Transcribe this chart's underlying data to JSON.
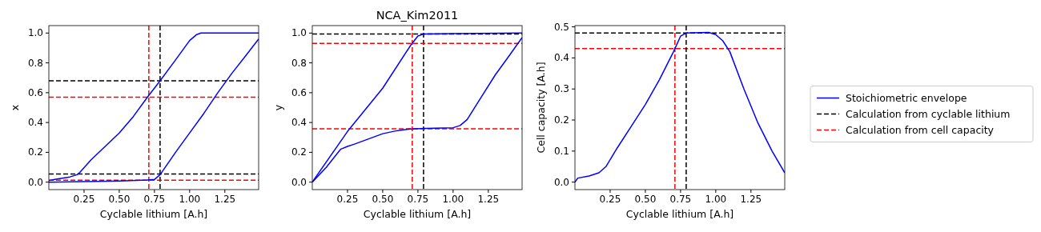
{
  "chart_data": [
    {
      "type": "line",
      "xlabel": "Cyclable lithium [A.h]",
      "ylabel": "x",
      "xlim": [
        0.0,
        1.49
      ],
      "ylim": [
        -0.05,
        1.05
      ],
      "xticks": [
        {
          "value": 0.25,
          "label": "0.25"
        },
        {
          "value": 0.5,
          "label": "0.50"
        },
        {
          "value": 0.75,
          "label": "0.75"
        },
        {
          "value": 1.0,
          "label": "1.00"
        },
        {
          "value": 1.25,
          "label": "1.25"
        }
      ],
      "yticks": [
        {
          "value": 0,
          "label": "0.0"
        },
        {
          "value": 0.2,
          "label": "0.2"
        },
        {
          "value": 0.4,
          "label": "0.4"
        },
        {
          "value": 0.6,
          "label": "0.6"
        },
        {
          "value": 0.8,
          "label": "0.8"
        },
        {
          "value": 1,
          "label": "1.0"
        }
      ],
      "series": [
        {
          "color": "#0000ff",
          "line_style": "solid",
          "x": [
            0,
            0.05,
            0.15,
            0.2,
            0.22,
            0.3,
            0.4,
            0.5,
            0.6,
            0.7,
            0.79,
            0.9,
            1.0,
            1.05,
            1.08,
            1.49
          ],
          "values": [
            0.01,
            0.02,
            0.035,
            0.05,
            0.065,
            0.15,
            0.24,
            0.33,
            0.44,
            0.57,
            0.68,
            0.82,
            0.95,
            0.99,
            1.0,
            1.0
          ]
        },
        {
          "color": "#0000ff",
          "line_style": "solid",
          "x": [
            0,
            0.25,
            0.5,
            0.7,
            0.75,
            0.79,
            0.9,
            1.0,
            1.1,
            1.2,
            1.3,
            1.4,
            1.49
          ],
          "values": [
            0.0,
            0.003,
            0.008,
            0.015,
            0.018,
            0.05,
            0.2,
            0.33,
            0.46,
            0.6,
            0.73,
            0.85,
            0.96
          ]
        }
      ],
      "ref_lines": [
        {
          "axis": "x",
          "value": 0.79,
          "color": "#000000",
          "line_style": "dashed"
        },
        {
          "axis": "x",
          "value": 0.71,
          "color": "#ff0000",
          "line_style": "dashed"
        },
        {
          "axis": "y",
          "value": 0.68,
          "color": "#000000",
          "line_style": "dashed"
        },
        {
          "axis": "y",
          "value": 0.055,
          "color": "#000000",
          "line_style": "dashed"
        },
        {
          "axis": "y",
          "value": 0.57,
          "color": "#ff0000",
          "line_style": "dashed"
        },
        {
          "axis": "y",
          "value": 0.013,
          "color": "#ff0000",
          "line_style": "dashed"
        }
      ]
    },
    {
      "type": "line",
      "title": "NCA_Kim2011",
      "xlabel": "Cyclable lithium [A.h]",
      "ylabel": "y",
      "xlim": [
        0.0,
        1.49
      ],
      "ylim": [
        -0.05,
        1.05
      ],
      "xticks": [
        {
          "value": 0.25,
          "label": "0.25"
        },
        {
          "value": 0.5,
          "label": "0.50"
        },
        {
          "value": 0.75,
          "label": "0.75"
        },
        {
          "value": 1.0,
          "label": "1.00"
        },
        {
          "value": 1.25,
          "label": "1.25"
        }
      ],
      "yticks": [
        {
          "value": 0,
          "label": "0.0"
        },
        {
          "value": 0.2,
          "label": "0.2"
        },
        {
          "value": 0.4,
          "label": "0.4"
        },
        {
          "value": 0.6,
          "label": "0.6"
        },
        {
          "value": 0.8,
          "label": "0.8"
        },
        {
          "value": 1,
          "label": "1.0"
        }
      ],
      "series": [
        {
          "color": "#0000ff",
          "line_style": "solid",
          "x": [
            0,
            0.25,
            0.5,
            0.7,
            0.75,
            0.79,
            1.0,
            1.49
          ],
          "values": [
            0.0,
            0.34,
            0.63,
            0.92,
            0.98,
            0.993,
            0.997,
            1.0
          ]
        },
        {
          "color": "#0000ff",
          "line_style": "solid",
          "x": [
            0,
            0.1,
            0.2,
            0.25,
            0.3,
            0.4,
            0.5,
            0.6,
            0.7,
            0.8,
            1.0,
            1.05,
            1.1,
            1.2,
            1.3,
            1.4,
            1.49
          ],
          "values": [
            0.0,
            0.1,
            0.22,
            0.24,
            0.255,
            0.29,
            0.325,
            0.345,
            0.357,
            0.36,
            0.365,
            0.38,
            0.42,
            0.57,
            0.72,
            0.85,
            0.97
          ]
        }
      ],
      "ref_lines": [
        {
          "axis": "x",
          "value": 0.79,
          "color": "#000000",
          "line_style": "dashed"
        },
        {
          "axis": "x",
          "value": 0.71,
          "color": "#ff0000",
          "line_style": "dashed"
        },
        {
          "axis": "y",
          "value": 0.993,
          "color": "#000000",
          "line_style": "dashed"
        },
        {
          "axis": "y",
          "value": 0.93,
          "color": "#ff0000",
          "line_style": "dashed"
        },
        {
          "axis": "y",
          "value": 0.358,
          "color": "#ff0000",
          "line_style": "dashed"
        }
      ]
    },
    {
      "type": "line",
      "xlabel": "Cyclable lithium [A.h]",
      "ylabel": "Cell capacity [A.h]",
      "xlim": [
        0.0,
        1.49
      ],
      "ylim": [
        -0.024,
        0.504
      ],
      "legend": "right",
      "xticks": [
        {
          "value": 0.25,
          "label": "0.25"
        },
        {
          "value": 0.5,
          "label": "0.50"
        },
        {
          "value": 0.75,
          "label": "0.75"
        },
        {
          "value": 1.0,
          "label": "1.00"
        },
        {
          "value": 1.25,
          "label": "1.25"
        }
      ],
      "yticks": [
        {
          "value": 0,
          "label": "0.0"
        },
        {
          "value": 0.1,
          "label": "0.1"
        },
        {
          "value": 0.2,
          "label": "0.2"
        },
        {
          "value": 0.3,
          "label": "0.3"
        },
        {
          "value": 0.4,
          "label": "0.4"
        },
        {
          "value": 0.5,
          "label": "0.5"
        }
      ],
      "series": [
        {
          "name": "Stoichiometric envelope",
          "color": "#0000ff",
          "line_style": "solid",
          "x": [
            0,
            0.02,
            0.1,
            0.17,
            0.22,
            0.3,
            0.4,
            0.5,
            0.6,
            0.7,
            0.75,
            0.79,
            0.95,
            1.0,
            1.05,
            1.1,
            1.2,
            1.3,
            1.4,
            1.49
          ],
          "values": [
            0.0,
            0.013,
            0.02,
            0.03,
            0.05,
            0.11,
            0.18,
            0.25,
            0.33,
            0.42,
            0.47,
            0.48,
            0.482,
            0.475,
            0.455,
            0.42,
            0.3,
            0.19,
            0.1,
            0.03
          ]
        }
      ],
      "ref_lines": [
        {
          "axis": "y",
          "value": 0.48,
          "color": "#000000",
          "line_style": "dashed",
          "label": "Calculation from cyclable lithium"
        },
        {
          "axis": "y",
          "value": 0.43,
          "color": "#ff0000",
          "line_style": "dashed",
          "label": "Calculation from cell capacity"
        },
        {
          "axis": "x",
          "value": 0.79,
          "color": "#000000",
          "line_style": "dashed"
        },
        {
          "axis": "x",
          "value": 0.71,
          "color": "#ff0000",
          "line_style": "dashed"
        }
      ]
    }
  ]
}
